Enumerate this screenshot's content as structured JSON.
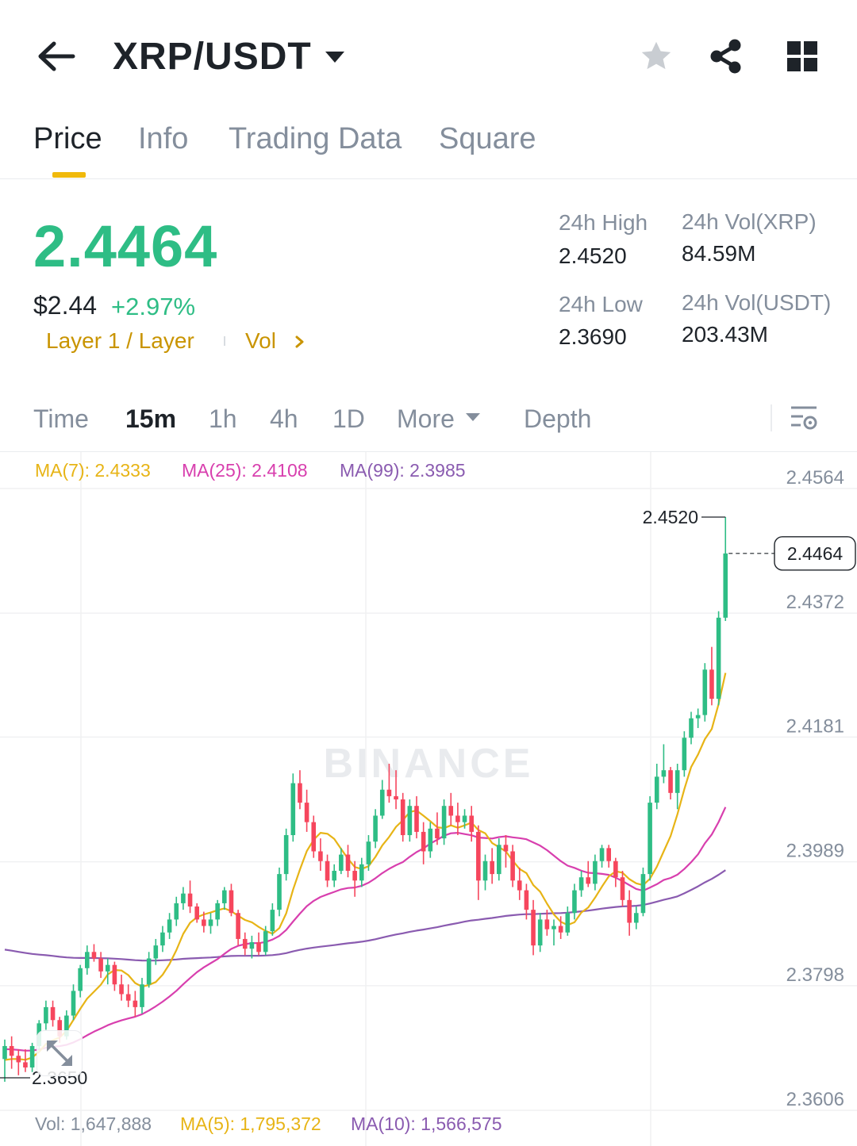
{
  "header": {
    "pair": "XRP/USDT"
  },
  "tabs": [
    {
      "label": "Price",
      "active": true
    },
    {
      "label": "Info",
      "active": false
    },
    {
      "label": "Trading Data",
      "active": false
    },
    {
      "label": "Square",
      "active": false
    }
  ],
  "price": {
    "last": "2.4464",
    "usd": "$2.44",
    "change": "+2.97%",
    "tag1": "Layer 1 / Layer",
    "tag2": "Vol"
  },
  "stats": {
    "high_label": "24h High",
    "high_value": "2.4520",
    "low_label": "24h Low",
    "low_value": "2.3690",
    "vol_base_label": "24h Vol(XRP)",
    "vol_base_value": "84.59M",
    "vol_quote_label": "24h Vol(USDT)",
    "vol_quote_value": "203.43M"
  },
  "timeframes": [
    "Time",
    "15m",
    "1h",
    "4h",
    "1D",
    "More",
    "Depth"
  ],
  "active_timeframe": "15m",
  "ma_legend": {
    "ma7": "MA(7): 2.4333",
    "ma25": "MA(25): 2.4108",
    "ma99": "MA(99): 2.3985"
  },
  "volume_legend": {
    "vol": "Vol: 1,647,888",
    "ma5": "MA(5): 1,795,372",
    "ma10": "MA(10): 1,566,575"
  },
  "colors": {
    "up": "#2ebd85",
    "down": "#f6465d",
    "accent": "#f0b90b",
    "ma7": "#e7b416",
    "ma25": "#d83fae",
    "ma99": "#8a5bb0"
  },
  "chart_data": {
    "type": "candlestick",
    "y_axis_ticks": [
      "2.4564",
      "2.4372",
      "2.4181",
      "2.3989",
      "2.3798",
      "2.3606"
    ],
    "ylim": [
      2.3606,
      2.4564
    ],
    "last_price_label": "2.4464",
    "high_marker": "2.4520",
    "low_marker": "2.3650",
    "watermark": "BINANCE",
    "candles": [
      {
        "o": 2.3685,
        "h": 2.3715,
        "l": 2.365,
        "c": 2.3705
      },
      {
        "o": 2.3705,
        "h": 2.372,
        "l": 2.367,
        "c": 2.369
      },
      {
        "o": 2.369,
        "h": 2.37,
        "l": 2.366,
        "c": 2.368
      },
      {
        "o": 2.368,
        "h": 2.37,
        "l": 2.3665,
        "c": 2.3672
      },
      {
        "o": 2.3672,
        "h": 2.371,
        "l": 2.3665,
        "c": 2.3705
      },
      {
        "o": 2.3705,
        "h": 2.3745,
        "l": 2.37,
        "c": 2.374
      },
      {
        "o": 2.374,
        "h": 2.3775,
        "l": 2.373,
        "c": 2.3765
      },
      {
        "o": 2.3765,
        "h": 2.3775,
        "l": 2.3735,
        "c": 2.3745
      },
      {
        "o": 2.3745,
        "h": 2.375,
        "l": 2.371,
        "c": 2.372
      },
      {
        "o": 2.372,
        "h": 2.376,
        "l": 2.3715,
        "c": 2.3752
      },
      {
        "o": 2.3752,
        "h": 2.38,
        "l": 2.3745,
        "c": 2.379
      },
      {
        "o": 2.379,
        "h": 2.383,
        "l": 2.378,
        "c": 2.3825
      },
      {
        "o": 2.3825,
        "h": 2.386,
        "l": 2.3815,
        "c": 2.385
      },
      {
        "o": 2.385,
        "h": 2.3862,
        "l": 2.3835,
        "c": 2.384
      },
      {
        "o": 2.384,
        "h": 2.385,
        "l": 2.381,
        "c": 2.382
      },
      {
        "o": 2.382,
        "h": 2.384,
        "l": 2.38,
        "c": 2.383
      },
      {
        "o": 2.383,
        "h": 2.3835,
        "l": 2.379,
        "c": 2.38
      },
      {
        "o": 2.38,
        "h": 2.3815,
        "l": 2.3775,
        "c": 2.3785
      },
      {
        "o": 2.3785,
        "h": 2.38,
        "l": 2.3765,
        "c": 2.3775
      },
      {
        "o": 2.3775,
        "h": 2.379,
        "l": 2.375,
        "c": 2.3765
      },
      {
        "o": 2.3765,
        "h": 2.381,
        "l": 2.3755,
        "c": 2.38
      },
      {
        "o": 2.38,
        "h": 2.385,
        "l": 2.3795,
        "c": 2.384
      },
      {
        "o": 2.384,
        "h": 2.387,
        "l": 2.383,
        "c": 2.386
      },
      {
        "o": 2.386,
        "h": 2.389,
        "l": 2.385,
        "c": 2.388
      },
      {
        "o": 2.388,
        "h": 2.391,
        "l": 2.387,
        "c": 2.39
      },
      {
        "o": 2.39,
        "h": 2.3935,
        "l": 2.389,
        "c": 2.3925
      },
      {
        "o": 2.3925,
        "h": 2.395,
        "l": 2.3915,
        "c": 2.394
      },
      {
        "o": 2.394,
        "h": 2.396,
        "l": 2.391,
        "c": 2.392
      },
      {
        "o": 2.392,
        "h": 2.3925,
        "l": 2.3895,
        "c": 2.39
      },
      {
        "o": 2.39,
        "h": 2.3912,
        "l": 2.388,
        "c": 2.389
      },
      {
        "o": 2.389,
        "h": 2.391,
        "l": 2.3878,
        "c": 2.39
      },
      {
        "o": 2.39,
        "h": 2.393,
        "l": 2.389,
        "c": 2.3925
      },
      {
        "o": 2.3925,
        "h": 2.395,
        "l": 2.3915,
        "c": 2.3945
      },
      {
        "o": 2.3945,
        "h": 2.3955,
        "l": 2.3905,
        "c": 2.391
      },
      {
        "o": 2.391,
        "h": 2.3915,
        "l": 2.386,
        "c": 2.387
      },
      {
        "o": 2.387,
        "h": 2.388,
        "l": 2.3845,
        "c": 2.3855
      },
      {
        "o": 2.3855,
        "h": 2.3875,
        "l": 2.384,
        "c": 2.3865
      },
      {
        "o": 2.3865,
        "h": 2.388,
        "l": 2.3845,
        "c": 2.385
      },
      {
        "o": 2.385,
        "h": 2.389,
        "l": 2.3845,
        "c": 2.3882
      },
      {
        "o": 2.3882,
        "h": 2.3925,
        "l": 2.3875,
        "c": 2.3915
      },
      {
        "o": 2.3915,
        "h": 2.398,
        "l": 2.3905,
        "c": 2.397
      },
      {
        "o": 2.397,
        "h": 2.404,
        "l": 2.396,
        "c": 2.403
      },
      {
        "o": 2.403,
        "h": 2.4125,
        "l": 2.402,
        "c": 2.411
      },
      {
        "o": 2.411,
        "h": 2.413,
        "l": 2.407,
        "c": 2.408
      },
      {
        "o": 2.408,
        "h": 2.41,
        "l": 2.4035,
        "c": 2.405
      },
      {
        "o": 2.405,
        "h": 2.406,
        "l": 2.3995,
        "c": 2.4005
      },
      {
        "o": 2.4005,
        "h": 2.4025,
        "l": 2.3975,
        "c": 2.399
      },
      {
        "o": 2.399,
        "h": 2.4,
        "l": 2.395,
        "c": 2.396
      },
      {
        "o": 2.396,
        "h": 2.3985,
        "l": 2.395,
        "c": 2.3975
      },
      {
        "o": 2.3975,
        "h": 2.401,
        "l": 2.397,
        "c": 2.4
      },
      {
        "o": 2.4,
        "h": 2.4015,
        "l": 2.3965,
        "c": 2.3975
      },
      {
        "o": 2.3975,
        "h": 2.399,
        "l": 2.3935,
        "c": 2.396
      },
      {
        "o": 2.396,
        "h": 2.3995,
        "l": 2.395,
        "c": 2.3985
      },
      {
        "o": 2.3985,
        "h": 2.403,
        "l": 2.3975,
        "c": 2.402
      },
      {
        "o": 2.402,
        "h": 2.407,
        "l": 2.401,
        "c": 2.406
      },
      {
        "o": 2.406,
        "h": 2.4115,
        "l": 2.4055,
        "c": 2.41
      },
      {
        "o": 2.41,
        "h": 2.414,
        "l": 2.408,
        "c": 2.409
      },
      {
        "o": 2.409,
        "h": 2.413,
        "l": 2.407,
        "c": 2.4085
      },
      {
        "o": 2.4085,
        "h": 2.4095,
        "l": 2.402,
        "c": 2.403
      },
      {
        "o": 2.403,
        "h": 2.4085,
        "l": 2.402,
        "c": 2.4075
      },
      {
        "o": 2.4075,
        "h": 2.409,
        "l": 2.4025,
        "c": 2.4035
      },
      {
        "o": 2.4035,
        "h": 2.405,
        "l": 2.3985,
        "c": 2.4005
      },
      {
        "o": 2.4005,
        "h": 2.405,
        "l": 2.3995,
        "c": 2.404
      },
      {
        "o": 2.404,
        "h": 2.4065,
        "l": 2.4015,
        "c": 2.4025
      },
      {
        "o": 2.4025,
        "h": 2.4085,
        "l": 2.4015,
        "c": 2.4075
      },
      {
        "o": 2.4075,
        "h": 2.4095,
        "l": 2.4045,
        "c": 2.406
      },
      {
        "o": 2.406,
        "h": 2.408,
        "l": 2.403,
        "c": 2.405
      },
      {
        "o": 2.405,
        "h": 2.407,
        "l": 2.404,
        "c": 2.406
      },
      {
        "o": 2.406,
        "h": 2.4075,
        "l": 2.402,
        "c": 2.4035
      },
      {
        "o": 2.4035,
        "h": 2.4045,
        "l": 2.393,
        "c": 2.396
      },
      {
        "o": 2.396,
        "h": 2.4,
        "l": 2.3945,
        "c": 2.399
      },
      {
        "o": 2.399,
        "h": 2.401,
        "l": 2.3955,
        "c": 2.397
      },
      {
        "o": 2.397,
        "h": 2.4025,
        "l": 2.396,
        "c": 2.4015
      },
      {
        "o": 2.4015,
        "h": 2.403,
        "l": 2.398,
        "c": 2.4005
      },
      {
        "o": 2.4005,
        "h": 2.4015,
        "l": 2.395,
        "c": 2.396
      },
      {
        "o": 2.396,
        "h": 2.398,
        "l": 2.393,
        "c": 2.3945
      },
      {
        "o": 2.3945,
        "h": 2.3955,
        "l": 2.39,
        "c": 2.3915
      },
      {
        "o": 2.3915,
        "h": 2.393,
        "l": 2.3845,
        "c": 2.386
      },
      {
        "o": 2.386,
        "h": 2.391,
        "l": 2.385,
        "c": 2.39
      },
      {
        "o": 2.39,
        "h": 2.3915,
        "l": 2.3875,
        "c": 2.3885
      },
      {
        "o": 2.3885,
        "h": 2.39,
        "l": 2.386,
        "c": 2.389
      },
      {
        "o": 2.389,
        "h": 2.3905,
        "l": 2.387,
        "c": 2.388
      },
      {
        "o": 2.388,
        "h": 2.392,
        "l": 2.3875,
        "c": 2.391
      },
      {
        "o": 2.391,
        "h": 2.3955,
        "l": 2.39,
        "c": 2.3945
      },
      {
        "o": 2.3945,
        "h": 2.3975,
        "l": 2.3935,
        "c": 2.3965
      },
      {
        "o": 2.3965,
        "h": 2.399,
        "l": 2.395,
        "c": 2.3955
      },
      {
        "o": 2.3955,
        "h": 2.4,
        "l": 2.3945,
        "c": 2.399
      },
      {
        "o": 2.399,
        "h": 2.4015,
        "l": 2.398,
        "c": 2.401
      },
      {
        "o": 2.401,
        "h": 2.4015,
        "l": 2.398,
        "c": 2.399
      },
      {
        "o": 2.399,
        "h": 2.3995,
        "l": 2.395,
        "c": 2.3965
      },
      {
        "o": 2.3965,
        "h": 2.3975,
        "l": 2.392,
        "c": 2.393
      },
      {
        "o": 2.393,
        "h": 2.3945,
        "l": 2.3875,
        "c": 2.3895
      },
      {
        "o": 2.3895,
        "h": 2.392,
        "l": 2.3885,
        "c": 2.391
      },
      {
        "o": 2.391,
        "h": 2.398,
        "l": 2.3905,
        "c": 2.397
      },
      {
        "o": 2.397,
        "h": 2.409,
        "l": 2.396,
        "c": 2.408
      },
      {
        "o": 2.408,
        "h": 2.414,
        "l": 2.407,
        "c": 2.412
      },
      {
        "o": 2.412,
        "h": 2.417,
        "l": 2.411,
        "c": 2.413
      },
      {
        "o": 2.413,
        "h": 2.4135,
        "l": 2.4085,
        "c": 2.4095
      },
      {
        "o": 2.4095,
        "h": 2.414,
        "l": 2.407,
        "c": 2.413
      },
      {
        "o": 2.413,
        "h": 2.419,
        "l": 2.412,
        "c": 2.418
      },
      {
        "o": 2.418,
        "h": 2.422,
        "l": 2.417,
        "c": 2.421
      },
      {
        "o": 2.421,
        "h": 2.4225,
        "l": 2.4195,
        "c": 2.4215
      },
      {
        "o": 2.4215,
        "h": 2.4295,
        "l": 2.4205,
        "c": 2.4285
      },
      {
        "o": 2.4285,
        "h": 2.432,
        "l": 2.423,
        "c": 2.424
      },
      {
        "o": 2.424,
        "h": 2.4375,
        "l": 2.423,
        "c": 2.4365
      },
      {
        "o": 2.4365,
        "h": 2.452,
        "l": 2.436,
        "c": 2.4464
      }
    ]
  }
}
